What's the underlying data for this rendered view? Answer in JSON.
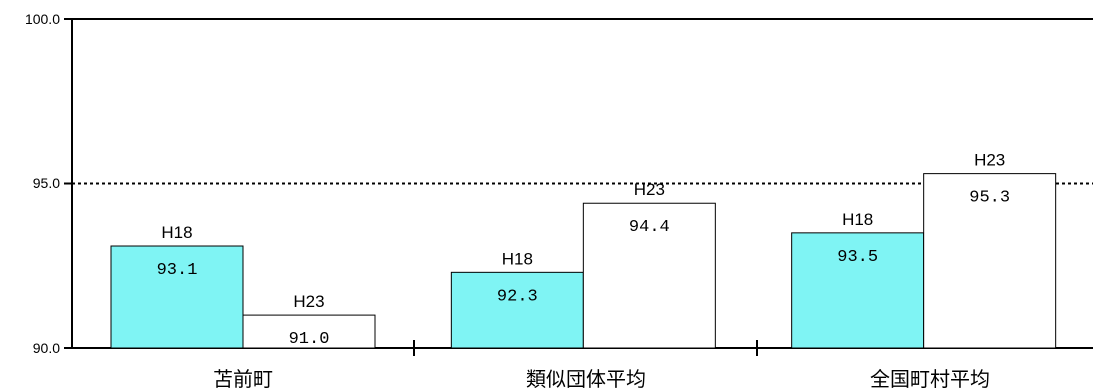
{
  "chart_data": {
    "type": "bar",
    "categories": [
      "苫前町",
      "類似団体平均",
      "全国町村平均"
    ],
    "series": [
      {
        "values": [
          93.1,
          92.3,
          93.5
        ],
        "labels": [
          "H18",
          "H18",
          "H18"
        ],
        "color": "#7ff4f4"
      },
      {
        "values": [
          91.0,
          94.4,
          95.3
        ],
        "labels": [
          "H23",
          "H23",
          "H23"
        ],
        "color": "#ffffff"
      }
    ],
    "y_ticks": [
      "100.0",
      "95.0",
      "90.0"
    ],
    "y_tick_values": [
      100,
      95,
      90
    ],
    "reference_line": 95,
    "ylim": [
      90,
      100
    ],
    "grid": false,
    "border_color": "#000000"
  }
}
